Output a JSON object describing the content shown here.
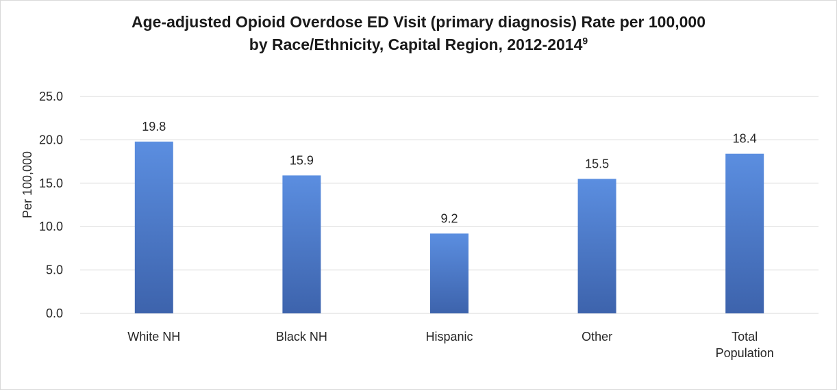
{
  "chart_data": {
    "type": "bar",
    "title_line1": "Age-adjusted Opioid Overdose ED Visit (primary diagnosis) Rate per 100,000",
    "title_line2": "by Race/Ethnicity, Capital Region, 2012-2014",
    "title_superscript": "9",
    "ylabel": "Per 100,000",
    "xlabel": "",
    "ylim": [
      0,
      25
    ],
    "yticks": [
      "0.0",
      "5.0",
      "10.0",
      "15.0",
      "20.0",
      "25.0"
    ],
    "categories": [
      "White NH",
      "Black NH",
      "Hispanic",
      "Other",
      "Total Population"
    ],
    "category_lines": [
      [
        "White NH"
      ],
      [
        "Black NH"
      ],
      [
        "Hispanic"
      ],
      [
        "Other"
      ],
      [
        "Total",
        "Population"
      ]
    ],
    "values": [
      19.8,
      15.9,
      9.2,
      15.5,
      18.4
    ],
    "value_labels": [
      "19.8",
      "15.9",
      "9.2",
      "15.5",
      "18.4"
    ],
    "grid": true,
    "legend": "none",
    "colors": {
      "bar_top": "#5b8ee0",
      "bar_bottom": "#3d63ac",
      "grid": "#d9d9d9"
    }
  }
}
